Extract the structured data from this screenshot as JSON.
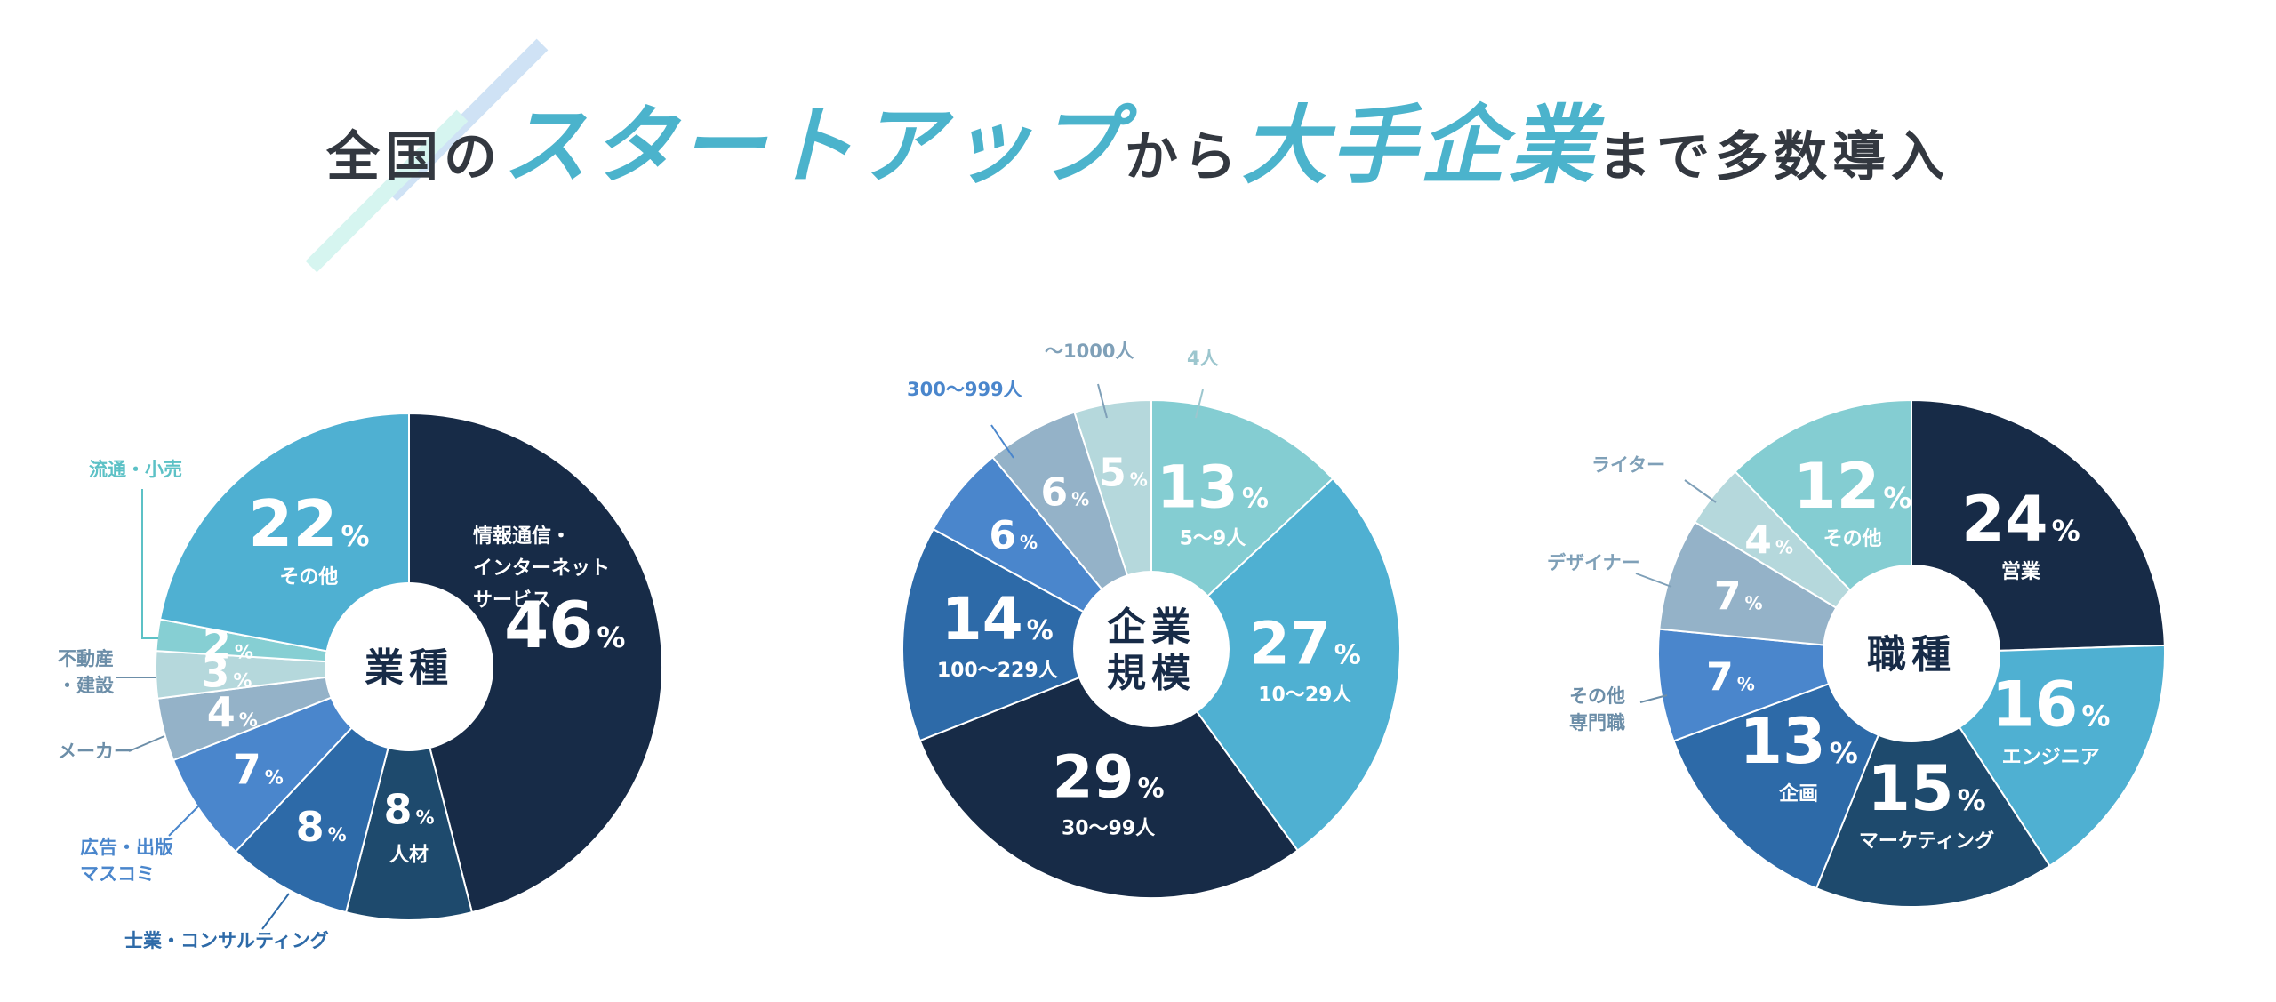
{
  "headline": {
    "part1": "全国の",
    "part2": "スタートアップ",
    "part3": "から",
    "part4": "大手企業",
    "part5": "まで多数導入"
  },
  "colors": {
    "accent": "#4bb3cc",
    "navy": "#172b47",
    "deco_blue": "#cfe2f5",
    "deco_mint": "#d6f5f0"
  },
  "chart_data": [
    {
      "type": "pie",
      "center_label": [
        "業種"
      ],
      "slices": [
        {
          "label": "情報通信・インターネットサービス",
          "value": 46,
          "color": "#172b47",
          "text_color": "#ffffff",
          "label_inside": true
        },
        {
          "label": "人材",
          "value": 8,
          "color": "#1e4a6d",
          "text_color": "#ffffff",
          "label_inside": true
        },
        {
          "label": "士業・コンサルティング",
          "value": 8,
          "color": "#2d6aa8",
          "text_color": "#ffffff",
          "label_inside": false
        },
        {
          "label": "広告・出版マスコミ",
          "value": 7,
          "color": "#4a86cc",
          "text_color": "#ffffff",
          "label_inside": false
        },
        {
          "label": "メーカー",
          "value": 4,
          "color": "#94b2c8",
          "text_color": "#ffffff",
          "label_inside": false
        },
        {
          "label": "不動産・建設",
          "value": 3,
          "color": "#b5d8dc",
          "text_color": "#ffffff",
          "label_inside": false
        },
        {
          "label": "流通・小売",
          "value": 2,
          "color": "#86cfd3",
          "text_color": "#ffffff",
          "label_inside": false
        },
        {
          "label": "その他",
          "value": 22,
          "color": "#4fb0d2",
          "text_color": "#ffffff",
          "label_inside": true
        }
      ],
      "unit": "%"
    },
    {
      "type": "pie",
      "center_label": [
        "企業",
        "規模"
      ],
      "slices": [
        {
          "label": "5〜9人",
          "value": 13,
          "color": "#84cdd2",
          "text_color": "#ffffff",
          "label_inside": true
        },
        {
          "label": "10〜29人",
          "value": 27,
          "color": "#4fb0d2",
          "text_color": "#ffffff",
          "label_inside": true
        },
        {
          "label": "30〜99人",
          "value": 29,
          "color": "#172b47",
          "text_color": "#ffffff",
          "label_inside": true
        },
        {
          "label": "100〜229人",
          "value": 14,
          "color": "#2d6aa8",
          "text_color": "#ffffff",
          "label_inside": true
        },
        {
          "label": "300〜999人",
          "value": 6,
          "color": "#4a86cc",
          "text_color": "#ffffff",
          "label_inside": false
        },
        {
          "label": "〜1000人",
          "value": 6,
          "color": "#94b2c8",
          "text_color": "#ffffff",
          "label_inside": false
        },
        {
          "label": "4人",
          "value": 5,
          "color": "#b5d8dc",
          "text_color": "#ffffff",
          "label_inside": false
        }
      ],
      "unit": "%"
    },
    {
      "type": "pie",
      "center_label": [
        "職種"
      ],
      "slices": [
        {
          "label": "営業",
          "value": 24,
          "color": "#172b47",
          "text_color": "#ffffff",
          "label_inside": true
        },
        {
          "label": "エンジニア",
          "value": 16,
          "color": "#4fb0d2",
          "text_color": "#ffffff",
          "label_inside": true
        },
        {
          "label": "マーケティング",
          "value": 15,
          "color": "#1e4a6d",
          "text_color": "#ffffff",
          "label_inside": true
        },
        {
          "label": "企画",
          "value": 13,
          "color": "#2d6aa8",
          "text_color": "#ffffff",
          "label_inside": true
        },
        {
          "label": "その他専門職",
          "value": 7,
          "color": "#4a86cc",
          "text_color": "#ffffff",
          "label_inside": false
        },
        {
          "label": "デザイナー",
          "value": 7,
          "color": "#94b2c8",
          "text_color": "#ffffff",
          "label_inside": false
        },
        {
          "label": "ライター",
          "value": 4,
          "color": "#b5d8dc",
          "text_color": "#ffffff",
          "label_inside": false
        },
        {
          "label": "その他",
          "value": 12,
          "color": "#84cdd2",
          "text_color": "#ffffff",
          "label_inside": true
        }
      ],
      "unit": "%"
    }
  ]
}
